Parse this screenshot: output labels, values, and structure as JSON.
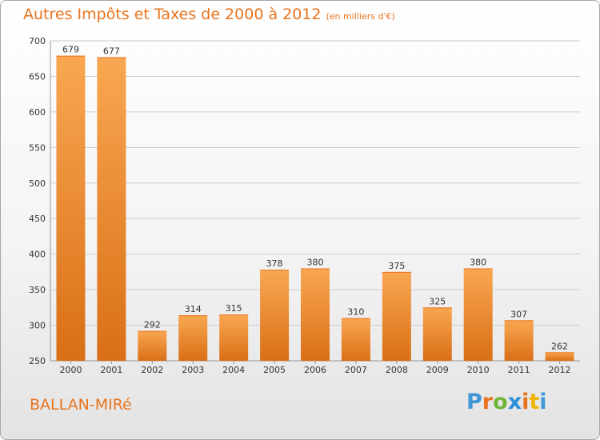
{
  "title": "Autres Impôts et Taxes de 2000 à 2012",
  "subtitle": "(en milliers d'€)",
  "town": "BALLAN-MIRé",
  "logo": {
    "letters": [
      "P",
      "r",
      "o",
      "x",
      "i",
      "t",
      "i"
    ],
    "colors": [
      "#3f97d6",
      "#e8741e",
      "#6fb53a",
      "#2a8dd8",
      "#e8741e",
      "#f0b400",
      "#3f97d6"
    ]
  },
  "colors": {
    "bar_top": "#f9a752",
    "bar_bottom": "#d96f16",
    "accent": "#e8741e"
  },
  "chart_data": {
    "type": "bar",
    "categories": [
      "2000",
      "2001",
      "2002",
      "2003",
      "2004",
      "2005",
      "2006",
      "2007",
      "2008",
      "2009",
      "2010",
      "2011",
      "2012"
    ],
    "values": [
      679,
      677,
      292,
      314,
      315,
      378,
      380,
      310,
      375,
      325,
      380,
      307,
      262
    ],
    "title": "Autres Impôts et Taxes de 2000 à 2012",
    "ylim": [
      250,
      700
    ],
    "yticks": [
      250,
      300,
      350,
      400,
      450,
      500,
      550,
      600,
      650,
      700
    ],
    "grid": true
  }
}
